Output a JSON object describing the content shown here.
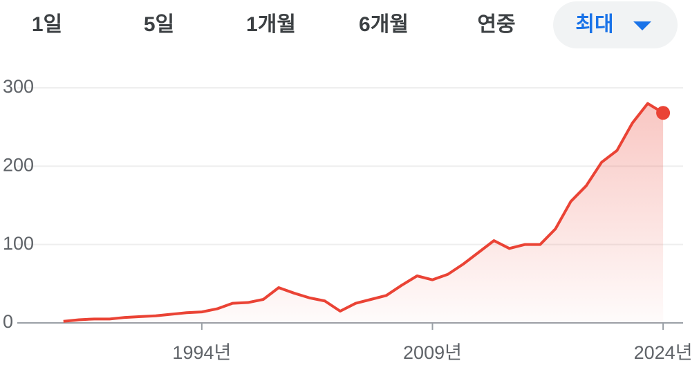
{
  "tabs": [
    "1일",
    "5일",
    "1개월",
    "6개월",
    "연중",
    "최대"
  ],
  "chart_data": {
    "type": "area",
    "x": [
      1985,
      1986,
      1987,
      1988,
      1989,
      1990,
      1991,
      1992,
      1993,
      1994,
      1995,
      1996,
      1997,
      1998,
      1999,
      2000,
      2001,
      2002,
      2003,
      2004,
      2005,
      2006,
      2007,
      2008,
      2009,
      2010,
      2011,
      2012,
      2013,
      2014,
      2015,
      2016,
      2017,
      2018,
      2019,
      2020,
      2021,
      2022,
      2023,
      2024
    ],
    "series": [
      {
        "color": "#ea4335",
        "values": [
          2,
          4,
          5,
          5,
          7,
          8,
          9,
          11,
          13,
          14,
          18,
          25,
          26,
          30,
          45,
          38,
          32,
          28,
          15,
          25,
          30,
          35,
          48,
          60,
          55,
          62,
          75,
          90,
          105,
          95,
          100,
          100,
          120,
          155,
          175,
          205,
          220,
          255,
          280,
          268
        ]
      }
    ],
    "xlim": [
      1982,
      2025.3
    ],
    "xticks": [
      {
        "value": 1994,
        "label": "1994년"
      },
      {
        "value": 2009,
        "label": "2009년"
      },
      {
        "value": 2024,
        "label": "2024년"
      }
    ],
    "ylim": [
      0,
      300
    ],
    "yticks": [
      0,
      100,
      200,
      300
    ],
    "grid": true
  }
}
